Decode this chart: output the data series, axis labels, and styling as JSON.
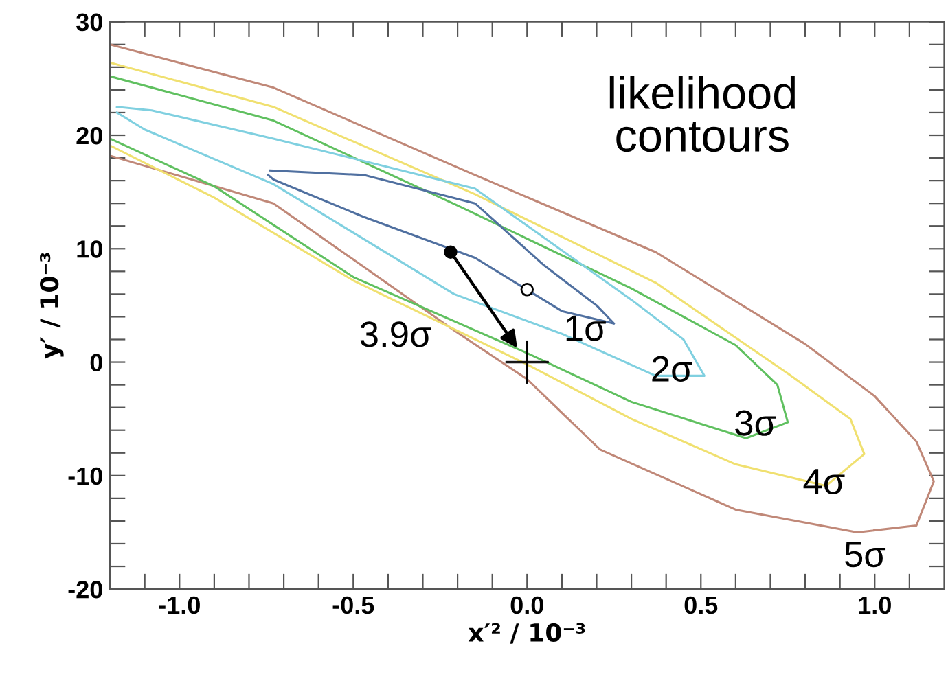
{
  "chart_data": {
    "type": "line",
    "xlabel": "x′² / 10⁻³",
    "ylabel": "y′ / 10⁻³",
    "xlim": [
      -1.2,
      1.2
    ],
    "ylim": [
      -20,
      30
    ],
    "xticks": [
      {
        "value": -1.1,
        "label": null
      },
      {
        "value": -1.0,
        "label": "-1.0"
      },
      {
        "value": -0.9,
        "label": null
      },
      {
        "value": -0.8,
        "label": null
      },
      {
        "value": -0.7,
        "label": null
      },
      {
        "value": -0.6,
        "label": null
      },
      {
        "value": -0.5,
        "label": "-0.5"
      },
      {
        "value": -0.4,
        "label": null
      },
      {
        "value": -0.3,
        "label": null
      },
      {
        "value": -0.2,
        "label": null
      },
      {
        "value": -0.1,
        "label": null
      },
      {
        "value": 0.0,
        "label": "0.0"
      },
      {
        "value": 0.1,
        "label": null
      },
      {
        "value": 0.2,
        "label": null
      },
      {
        "value": 0.3,
        "label": null
      },
      {
        "value": 0.4,
        "label": null
      },
      {
        "value": 0.5,
        "label": "0.5"
      },
      {
        "value": 0.6,
        "label": null
      },
      {
        "value": 0.7,
        "label": null
      },
      {
        "value": 0.8,
        "label": null
      },
      {
        "value": 0.9,
        "label": null
      },
      {
        "value": 1.0,
        "label": "1.0"
      },
      {
        "value": 1.1,
        "label": null
      }
    ],
    "yticks": [
      {
        "value": -20,
        "label": "-20"
      },
      {
        "value": -18,
        "label": null
      },
      {
        "value": -16,
        "label": null
      },
      {
        "value": -14,
        "label": null
      },
      {
        "value": -12,
        "label": null
      },
      {
        "value": -10,
        "label": "-10"
      },
      {
        "value": -8,
        "label": null
      },
      {
        "value": -6,
        "label": null
      },
      {
        "value": -4,
        "label": null
      },
      {
        "value": -2,
        "label": null
      },
      0,
      {
        "value": 2,
        "label": null
      },
      {
        "value": 4,
        "label": null
      },
      {
        "value": 6,
        "label": null
      },
      {
        "value": 8,
        "label": null
      },
      10,
      {
        "value": 12,
        "label": null
      },
      {
        "value": 14,
        "label": null
      },
      {
        "value": 16,
        "label": null
      },
      {
        "value": 18,
        "label": null
      },
      20,
      {
        "value": 22,
        "label": null
      },
      {
        "value": 24,
        "label": null
      },
      {
        "value": 26,
        "label": null
      },
      {
        "value": 28,
        "label": null
      },
      30
    ],
    "grid": false,
    "marker": "none",
    "line_style": "solid",
    "series": [
      {
        "name": "5σ",
        "color": "#c08878",
        "x": [
          -1.2,
          -0.73,
          -0.15,
          0.37,
          0.8,
          1.0,
          1.12,
          1.17,
          1.12,
          0.95,
          0.6,
          0.21,
          0.0,
          -0.21,
          -0.73,
          -1.2
        ],
        "values": [
          28,
          24.2,
          16.5,
          9.7,
          1.6,
          -3,
          -7,
          -10.5,
          -14.4,
          -15,
          -13,
          -7.7,
          -1.5,
          2.8,
          14.0,
          18.2
        ]
      },
      {
        "name": "4σ",
        "color": "#f0e070",
        "x": [
          -1.2,
          -0.73,
          -0.15,
          0.37,
          0.75,
          0.93,
          0.97,
          0.86,
          0.6,
          0.3,
          0.0,
          -0.5,
          -0.9,
          -1.2
        ],
        "values": [
          26.4,
          22.5,
          14.8,
          7.0,
          -1,
          -5,
          -8.1,
          -10.9,
          -9,
          -5,
          -0.2,
          7.2,
          14.5,
          19.1
        ]
      },
      {
        "name": "3σ",
        "color": "#60c060",
        "x": [
          -1.2,
          -0.73,
          -0.2,
          0.3,
          0.6,
          0.72,
          0.75,
          0.63,
          0.3,
          0.0,
          -0.5,
          -0.9,
          -1.2
        ],
        "values": [
          25.2,
          21.3,
          13.8,
          6.5,
          1.5,
          -2,
          -5.3,
          -6.7,
          -3.5,
          0.8,
          7.5,
          15.5,
          19.7
        ]
      },
      {
        "name": "2σ",
        "color": "#80d0e0",
        "x": [
          -1.18,
          -1.08,
          -0.73,
          -0.15,
          0.3,
          0.45,
          0.51,
          0.37,
          0.1,
          -0.21,
          -0.73,
          -1.1,
          -1.18
        ],
        "values": [
          22.5,
          22.2,
          19.7,
          15.3,
          5.5,
          2,
          -1.2,
          -1.2,
          2.5,
          6.0,
          15.7,
          20.5,
          22.0
        ]
      },
      {
        "name": "1σ",
        "color": "#5070a0",
        "x": [
          -0.74,
          -0.47,
          -0.15,
          0.05,
          0.2,
          0.25,
          0.1,
          -0.15,
          -0.47,
          -0.73,
          -0.745
        ],
        "values": [
          16.9,
          16.5,
          14.0,
          8.5,
          5,
          3.4,
          4.5,
          9.2,
          12.8,
          16.1,
          16.5
        ]
      },
      {
        "type": "scatter",
        "marker": "circle",
        "color": "#000000",
        "x": [
          -0.22
        ],
        "values": [
          9.7
        ]
      },
      {
        "type": "scatter",
        "marker": "circle",
        "color": "#ffffff",
        "x": [
          0.0
        ],
        "values": [
          6.4
        ]
      },
      {
        "type": "scatter",
        "marker": "cross",
        "color": "#000000",
        "x": [
          0.0
        ],
        "values": [
          0.0
        ]
      }
    ],
    "annotations": [
      "likelihood\ncontours",
      {
        "text": "3.9σ",
        "x": 0.0,
        "y": 0.0
      }
    ]
  }
}
